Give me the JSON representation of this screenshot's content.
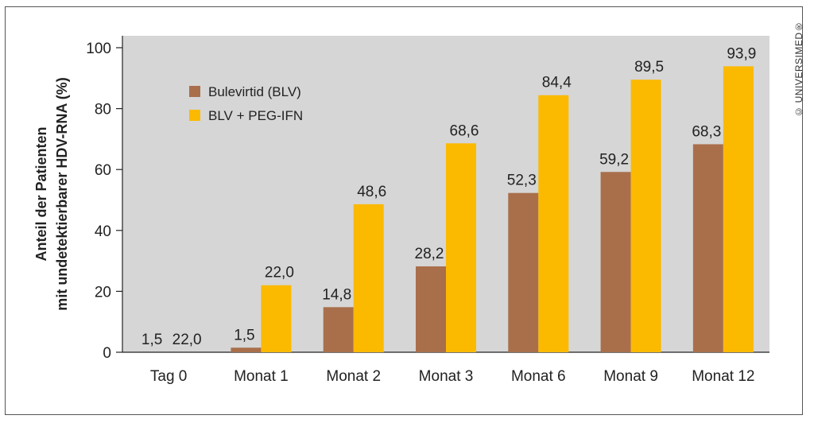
{
  "chart_data": {
    "type": "bar",
    "title": "",
    "xlabel": "",
    "ylabel": [
      "Anteil der Patienten",
      "mit undetektierbarer HDV-RNA (%)"
    ],
    "categories": [
      "Tag 0",
      "Monat 1",
      "Monat 2",
      "Monat 3",
      "Monat 6",
      "Monat 9",
      "Monat 12"
    ],
    "series": [
      {
        "name": "Bulevirtid (BLV)",
        "color": "#a96f4b",
        "values": [
          1.5,
          1.5,
          14.8,
          28.2,
          52.3,
          59.2,
          68.3
        ],
        "labels": [
          "1,5",
          "1,5",
          "14,8",
          "28,2",
          "52,3",
          "59,2",
          "68,3"
        ],
        "bars_drawn": [
          false,
          true,
          true,
          true,
          true,
          true,
          true
        ]
      },
      {
        "name": "BLV + PEG-IFN",
        "color": "#fbb900",
        "values": [
          22.0,
          22.0,
          48.6,
          68.6,
          84.4,
          89.5,
          93.9
        ],
        "labels": [
          "22,0",
          "22,0",
          "48,6",
          "68,6",
          "84,4",
          "89,5",
          "93,9"
        ],
        "bars_drawn": [
          false,
          true,
          true,
          true,
          true,
          true,
          true
        ]
      }
    ],
    "yticks": [
      "0",
      "20",
      "40",
      "60",
      "80",
      "100"
    ],
    "ylim": [
      0,
      100
    ],
    "grid": false,
    "legend_position": "top-left",
    "plot_background": "#d6d6d6"
  },
  "copyright": "© UNIVERSIMED®"
}
